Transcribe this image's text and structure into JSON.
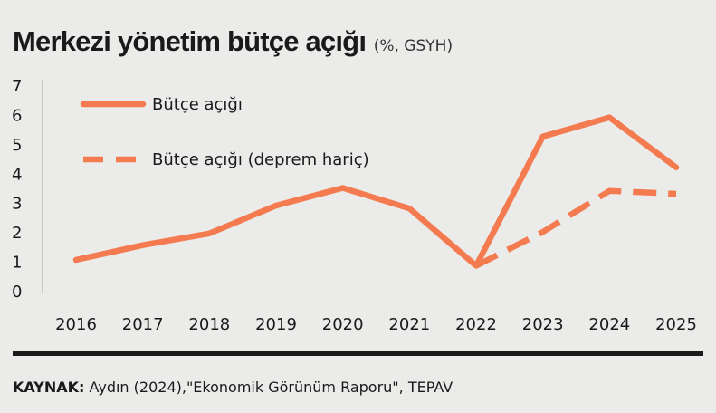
{
  "header": {
    "title": "Merkezi yönetim bütçe açığı",
    "subtitle": "(%, GSYH)"
  },
  "source": {
    "label": "KAYNAK:",
    "text": "Aydın (2024),\"Ekonomik Görünüm Raporu\", TEPAV"
  },
  "colors": {
    "line": "#f47a4f",
    "axis": "#bcbcbc",
    "rule": "#1a1a1a"
  },
  "chart_data": {
    "type": "line",
    "x": [
      "2016",
      "2017",
      "2018",
      "2019",
      "2020",
      "2021",
      "2022",
      "2023",
      "2024",
      "2025"
    ],
    "ylim": [
      0,
      7
    ],
    "yticks": [
      "0",
      "1",
      "2",
      "3",
      "4",
      "5",
      "6",
      "7"
    ],
    "grid": false,
    "legend_position": "top-left",
    "series": [
      {
        "name": "Bütçe açığı",
        "style": "solid",
        "values": [
          1.05,
          1.55,
          1.95,
          2.9,
          3.5,
          2.8,
          0.85,
          5.25,
          5.9,
          4.2
        ]
      },
      {
        "name": "Bütçe açığı (deprem hariç)",
        "style": "dashed",
        "values": [
          null,
          null,
          null,
          null,
          null,
          null,
          0.85,
          2.0,
          3.4,
          3.3
        ]
      }
    ]
  }
}
